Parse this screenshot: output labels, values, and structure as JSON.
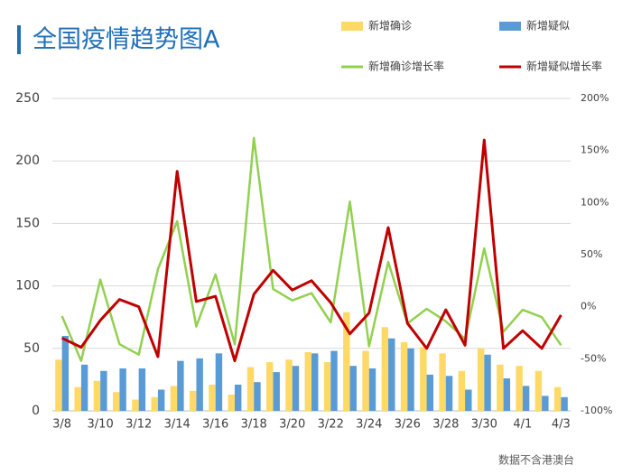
{
  "chart_data": {
    "type": "bar-line",
    "title": "全国疫情趋势图A",
    "note": "数据不含港澳台",
    "categories": [
      "3/8",
      null,
      "3/10",
      null,
      "3/12",
      null,
      "3/14",
      null,
      "3/16",
      null,
      "3/18",
      null,
      "3/20",
      null,
      "3/22",
      null,
      "3/24",
      null,
      "3/26",
      null,
      "3/28",
      null,
      "3/30",
      null,
      "4/1",
      null,
      "4/3"
    ],
    "series": [
      {
        "name": "新增确诊",
        "type": "bar",
        "color": "#ffd966",
        "values": [
          41,
          19,
          24,
          15,
          9,
          11,
          20,
          16,
          21,
          13,
          35,
          39,
          41,
          47,
          39,
          79,
          48,
          67,
          55,
          51,
          46,
          32,
          50,
          37,
          36,
          32,
          19
        ]
      },
      {
        "name": "新增疑似",
        "type": "bar",
        "color": "#5b9bd5",
        "values": [
          60,
          37,
          32,
          34,
          34,
          17,
          40,
          42,
          46,
          21,
          23,
          31,
          36,
          46,
          48,
          36,
          34,
          58,
          50,
          29,
          28,
          17,
          45,
          26,
          20,
          12,
          11
        ]
      },
      {
        "name": "新增确诊增长率",
        "type": "line",
        "axis": "y2",
        "color": "#92d050",
        "values": [
          -9,
          -52,
          26,
          -36,
          -46,
          36,
          82,
          -19,
          31,
          -36,
          162,
          17,
          6,
          13,
          -15,
          101,
          -38,
          43,
          -16,
          -2,
          -14,
          -31,
          56,
          -24,
          -3,
          -10,
          -37
        ]
      },
      {
        "name": "新增疑似增长率",
        "type": "line",
        "axis": "y2",
        "color": "#c00000",
        "values": [
          -30,
          -39,
          -13,
          7,
          0,
          -48,
          130,
          5,
          10,
          -52,
          12,
          35,
          16,
          25,
          4,
          -26,
          -6,
          76,
          -16,
          -40,
          -3,
          -37,
          160,
          -40,
          -23,
          -40,
          -8
        ]
      }
    ],
    "ylim": [
      0,
      250
    ],
    "yticks": [
      0,
      50,
      100,
      150,
      200,
      250
    ],
    "y2lim": [
      -100,
      200
    ],
    "y2ticks": [
      {
        "value": -100,
        "label": "-100%"
      },
      {
        "value": -50,
        "label": "-50%"
      },
      {
        "value": 0,
        "label": "0%"
      },
      {
        "value": 50,
        "label": "50%"
      },
      {
        "value": 100,
        "label": "100%"
      },
      {
        "value": 150,
        "label": "150%"
      },
      {
        "value": 200,
        "label": "200%"
      }
    ],
    "grid": true
  }
}
